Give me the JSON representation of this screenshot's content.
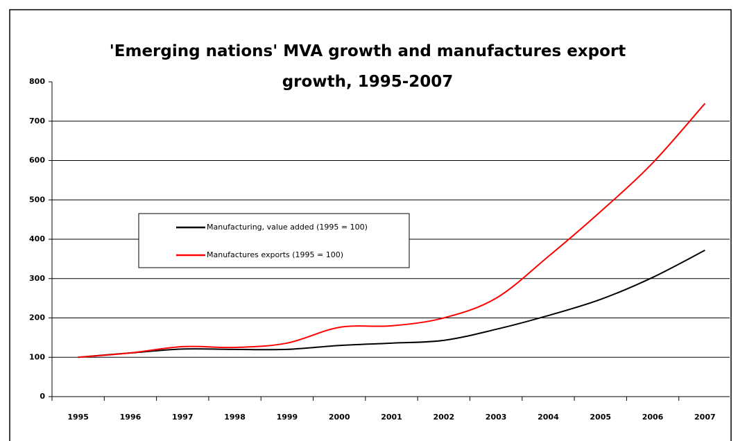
{
  "chart_data": {
    "type": "line",
    "title": "'Emerging nations' MVA growth and manufactures export growth, 1995-2007",
    "categories": [
      "1995",
      "1996",
      "1997",
      "1998",
      "1999",
      "2000",
      "2001",
      "2002",
      "2003",
      "2004",
      "2005",
      "2006",
      "2007"
    ],
    "series": [
      {
        "name": "Manufacturing, value added (1995 = 100)",
        "color": "#000000",
        "values": [
          100,
          111,
          121,
          120,
          120,
          130,
          136,
          143,
          171,
          206,
          247,
          303,
          372
        ]
      },
      {
        "name": "Manufactures exports (1995 = 100)",
        "color": "#ff0000",
        "values": [
          100,
          111,
          127,
          125,
          136,
          176,
          180,
          200,
          250,
          356,
          470,
          594,
          745
        ]
      }
    ],
    "ylim": [
      0,
      800
    ],
    "yticks": [
      0,
      100,
      200,
      300,
      400,
      500,
      600,
      700,
      800
    ],
    "grid": true
  }
}
